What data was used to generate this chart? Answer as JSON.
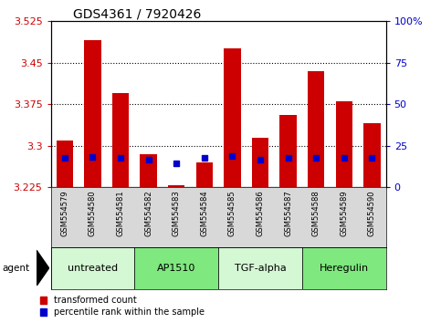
{
  "title": "GDS4361 / 7920426",
  "samples": [
    "GSM554579",
    "GSM554580",
    "GSM554581",
    "GSM554582",
    "GSM554583",
    "GSM554584",
    "GSM554585",
    "GSM554586",
    "GSM554587",
    "GSM554588",
    "GSM554589",
    "GSM554590"
  ],
  "red_values": [
    3.31,
    3.49,
    3.395,
    3.285,
    3.228,
    3.27,
    3.475,
    3.315,
    3.355,
    3.435,
    3.38,
    3.34
  ],
  "blue_values": [
    3.278,
    3.28,
    3.278,
    3.275,
    3.268,
    3.278,
    3.282,
    3.275,
    3.278,
    3.278,
    3.278,
    3.278
  ],
  "ymin": 3.225,
  "ymax": 3.525,
  "yticks_left": [
    3.225,
    3.3,
    3.375,
    3.45,
    3.525
  ],
  "yticks_right_vals": [
    0,
    25,
    50,
    75,
    100
  ],
  "yticks_right_labels": [
    "0",
    "25",
    "50",
    "75",
    "100%"
  ],
  "groups": [
    {
      "label": "untreated",
      "start": 0,
      "end": 3,
      "color": "#d4f7d4"
    },
    {
      "label": "AP1510",
      "start": 3,
      "end": 6,
      "color": "#7fe87f"
    },
    {
      "label": "TGF-alpha",
      "start": 6,
      "end": 9,
      "color": "#d4f7d4"
    },
    {
      "label": "Heregulin",
      "start": 9,
      "end": 12,
      "color": "#7fe87f"
    }
  ],
  "bar_color": "#cc0000",
  "blue_color": "#0000cc",
  "bar_width": 0.6,
  "bg_color": "#ffffff",
  "plot_bg": "#ffffff",
  "left_label_color": "#cc0000",
  "right_label_color": "#0000cc",
  "xlabel_area_color": "#d8d8d8",
  "grid_color": "#000000",
  "grid_linestyle": "dotted",
  "title_fontsize": 10,
  "tick_fontsize": 8,
  "sample_fontsize": 6,
  "group_fontsize": 8
}
